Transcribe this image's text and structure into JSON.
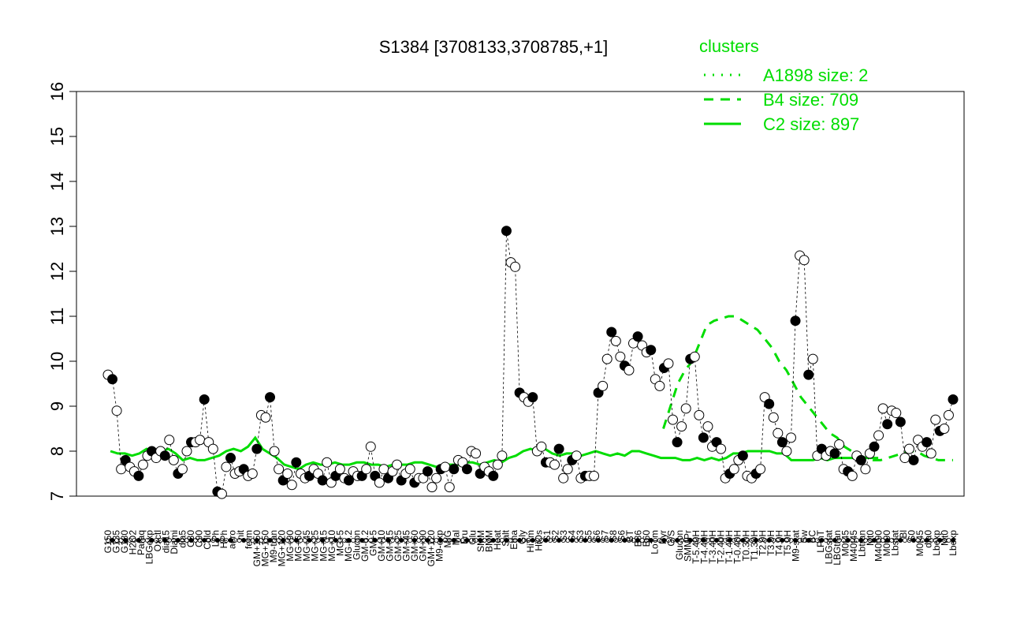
{
  "chart_data": {
    "type": "line",
    "title": "S1384 [3708133,3708785,+1]",
    "ylim": [
      7,
      16
    ],
    "y_ticks": [
      "7",
      "8",
      "9",
      "10",
      "11",
      "12",
      "13",
      "14",
      "15",
      "16"
    ],
    "legend": {
      "title": "clusters",
      "placement": "top-right",
      "entries": [
        {
          "label": "A1898 size: 2",
          "style": "dotted"
        },
        {
          "label": "B4 size: 709",
          "style": "dashed"
        },
        {
          "label": "C2 size: 897",
          "style": "solid"
        }
      ]
    },
    "x_tick_labels": [
      "G150",
      "G135",
      "G180",
      "H2O2",
      "Paraq",
      "LBGexp",
      "Oxctl",
      "dia15",
      "Diami",
      "dia5",
      "C30",
      "C90",
      "Cold",
      "LPh",
      "HPh",
      "aero",
      "nit",
      "ferm",
      "GM+150",
      "MG+150",
      "M9-tran",
      "MG+120",
      "MG+90",
      "MG+60",
      "MG+45",
      "MG+25",
      "MG+15",
      "MG+10",
      "MG+5",
      "MG-0.2",
      "Glucon",
      "GM-0.2",
      "GM+5",
      "GM+10",
      "GM+15",
      "GM+25",
      "GM+45",
      "GM+60",
      "GM+90",
      "GM+120",
      "M9-exp",
      "M/G",
      "Mal",
      "Fru",
      "Glu",
      "SMM",
      "BMM",
      "Heat",
      "Salt",
      "Etha",
      "Gly",
      "HiTm",
      "HiOs",
      "S1",
      "S2",
      "S3",
      "S4",
      "S3",
      "S5",
      "S6",
      "S7",
      "S8",
      "S6",
      "BT",
      "B36",
      "B60",
      "LoTm",
      "Pyr",
      "G/S",
      "Glucon",
      "SMMPr",
      "T-5.40H",
      "T-4.40H",
      "T-3.40H",
      "T-2.40H",
      "T-1.40H",
      "T-0.40H",
      "T0.30H",
      "T1.30H",
      "T2.0H",
      "T3.0H",
      "T4.0H",
      "T5.0H",
      "M9-stat",
      "Sw",
      "BC",
      "LPhT",
      "LBGstat",
      "LBGtran",
      "M0t45",
      "M40t45",
      "Lbtran",
      "Mt0",
      "M40t90",
      "M0t90",
      "Lbstat",
      "Bl",
      "S0",
      "M0t45",
      "dia0",
      "Lbexp",
      "Mt0",
      "Lbexp"
    ],
    "series": [
      {
        "name": "C2 size: 897",
        "x": [
          1,
          4,
          7,
          10,
          13,
          16,
          19,
          22,
          25,
          28,
          31,
          34,
          37,
          40,
          43,
          46,
          49,
          52,
          55,
          58,
          61,
          64,
          67,
          70,
          73,
          76,
          79,
          82,
          85,
          88,
          91,
          94,
          97,
          100,
          103,
          106,
          109,
          112,
          115,
          118,
          121,
          124,
          127,
          130,
          133,
          136,
          139,
          142,
          145,
          148,
          151,
          154,
          157,
          160,
          163,
          166,
          169,
          172,
          175,
          178,
          181,
          184,
          187,
          190,
          193,
          196,
          199,
          202,
          205,
          208,
          211,
          214,
          217,
          220,
          223,
          226,
          229,
          232,
          235,
          238,
          241,
          244,
          247,
          250,
          253,
          256,
          259,
          262,
          265,
          268,
          271,
          274,
          277,
          280,
          283,
          286,
          289,
          292,
          295,
          298,
          301,
          304,
          307,
          310,
          313,
          316,
          319
        ],
        "y": [
          8.0,
          7.95,
          7.95,
          7.9,
          7.95,
          8.05,
          8.0,
          8.0,
          8.05,
          7.95,
          7.8,
          7.85,
          7.8,
          7.8,
          7.85,
          7.9,
          8.0,
          8.05,
          8.0,
          8.1,
          8.3,
          8.05,
          7.95,
          7.85,
          7.7,
          7.65,
          7.6,
          7.7,
          7.75,
          7.7,
          7.7,
          7.75,
          7.7,
          7.7,
          7.75,
          7.75,
          7.7,
          7.7,
          7.65,
          7.7,
          7.7,
          7.7,
          7.75,
          7.75,
          7.7,
          7.65,
          7.7,
          7.7,
          7.7,
          7.75,
          7.75,
          7.7,
          7.75,
          7.8,
          7.75,
          7.85,
          7.9,
          8.0,
          8.05,
          8.0,
          8.05,
          7.95,
          7.9,
          7.95,
          7.95,
          7.9,
          7.95,
          8.0,
          7.95,
          7.9,
          7.95,
          7.9,
          8.0,
          8.0,
          7.95,
          7.9,
          7.85,
          7.85,
          7.85,
          7.8,
          7.8,
          7.85,
          7.8,
          7.85,
          7.8,
          7.85,
          7.95,
          7.95,
          8.0,
          8.0,
          8.0,
          8.0,
          7.95,
          7.95,
          7.8,
          7.8,
          7.8,
          7.8,
          7.85,
          7.8,
          7.85,
          7.85,
          7.85,
          7.85,
          7.85,
          7.85,
          7.85
        ]
      },
      {
        "name": "B4 size: 709",
        "x": [
          230,
          233,
          236,
          239,
          242,
          245,
          248,
          251,
          254,
          257,
          260,
          263,
          266,
          269,
          272,
          275,
          278,
          281,
          284,
          287,
          290,
          293,
          296,
          299,
          302,
          305,
          308,
          311,
          314,
          317,
          320,
          323,
          326,
          329,
          332,
          335,
          338,
          341,
          344,
          347,
          350
        ],
        "y": [
          8.5,
          9.0,
          9.5,
          9.8,
          10.0,
          10.4,
          10.8,
          10.9,
          10.95,
          11.0,
          11.0,
          10.9,
          10.8,
          10.7,
          10.5,
          10.3,
          10.0,
          9.8,
          9.5,
          9.2,
          9.0,
          8.8,
          8.6,
          8.4,
          8.3,
          8.1,
          8.0,
          7.9,
          7.85,
          7.8,
          7.8,
          7.85,
          7.9,
          7.95,
          8.0,
          8.0,
          7.9,
          7.85,
          7.8,
          7.8,
          7.8
        ]
      },
      {
        "name": "A1898 size: 2",
        "x": [],
        "y": []
      }
    ],
    "points": [
      {
        "x": 0,
        "y": 9.7
      },
      {
        "x": 1,
        "y": 9.6
      },
      {
        "x": 2,
        "y": 8.9
      },
      {
        "x": 3,
        "y": 7.6
      },
      {
        "x": 4,
        "y": 7.8
      },
      {
        "x": 5,
        "y": 7.65
      },
      {
        "x": 6,
        "y": 7.55
      },
      {
        "x": 7,
        "y": 7.45
      },
      {
        "x": 8,
        "y": 7.7
      },
      {
        "x": 9,
        "y": 7.9
      },
      {
        "x": 10,
        "y": 8.0
      },
      {
        "x": 11,
        "y": 7.85
      },
      {
        "x": 12,
        "y": 8.0
      },
      {
        "x": 13,
        "y": 7.9
      },
      {
        "x": 14,
        "y": 8.25
      },
      {
        "x": 15,
        "y": 7.8
      },
      {
        "x": 16,
        "y": 7.5
      },
      {
        "x": 17,
        "y": 7.6
      },
      {
        "x": 18,
        "y": 8.0
      },
      {
        "x": 19,
        "y": 8.2
      },
      {
        "x": 20,
        "y": 8.2
      },
      {
        "x": 21,
        "y": 8.25
      },
      {
        "x": 22,
        "y": 9.15
      },
      {
        "x": 23,
        "y": 8.2
      },
      {
        "x": 24,
        "y": 8.05
      },
      {
        "x": 25,
        "y": 7.1
      },
      {
        "x": 26,
        "y": 7.05
      },
      {
        "x": 27,
        "y": 7.65
      },
      {
        "x": 28,
        "y": 7.85
      },
      {
        "x": 29,
        "y": 7.5
      },
      {
        "x": 30,
        "y": 7.55
      },
      {
        "x": 31,
        "y": 7.6
      },
      {
        "x": 32,
        "y": 7.45
      },
      {
        "x": 33,
        "y": 7.5
      },
      {
        "x": 34,
        "y": 8.05
      },
      {
        "x": 35,
        "y": 8.8
      },
      {
        "x": 36,
        "y": 8.75
      },
      {
        "x": 37,
        "y": 9.2
      },
      {
        "x": 38,
        "y": 8.0
      },
      {
        "x": 39,
        "y": 7.6
      },
      {
        "x": 40,
        "y": 7.35
      },
      {
        "x": 41,
        "y": 7.5
      },
      {
        "x": 42,
        "y": 7.25
      },
      {
        "x": 43,
        "y": 7.75
      },
      {
        "x": 44,
        "y": 7.5
      },
      {
        "x": 45,
        "y": 7.4
      },
      {
        "x": 46,
        "y": 7.45
      },
      {
        "x": 47,
        "y": 7.6
      },
      {
        "x": 48,
        "y": 7.5
      },
      {
        "x": 49,
        "y": 7.35
      },
      {
        "x": 50,
        "y": 7.75
      },
      {
        "x": 51,
        "y": 7.3
      },
      {
        "x": 52,
        "y": 7.45
      },
      {
        "x": 53,
        "y": 7.6
      },
      {
        "x": 54,
        "y": 7.4
      },
      {
        "x": 55,
        "y": 7.35
      },
      {
        "x": 56,
        "y": 7.55
      },
      {
        "x": 57,
        "y": 7.45
      },
      {
        "x": 58,
        "y": 7.45
      },
      {
        "x": 59,
        "y": 7.6
      },
      {
        "x": 60,
        "y": 8.1
      },
      {
        "x": 61,
        "y": 7.45
      },
      {
        "x": 62,
        "y": 7.3
      },
      {
        "x": 63,
        "y": 7.6
      },
      {
        "x": 64,
        "y": 7.4
      },
      {
        "x": 65,
        "y": 7.55
      },
      {
        "x": 66,
        "y": 7.7
      },
      {
        "x": 67,
        "y": 7.35
      },
      {
        "x": 68,
        "y": 7.5
      },
      {
        "x": 69,
        "y": 7.6
      },
      {
        "x": 70,
        "y": 7.3
      },
      {
        "x": 71,
        "y": 7.4
      },
      {
        "x": 72,
        "y": 7.4
      },
      {
        "x": 73,
        "y": 7.55
      },
      {
        "x": 74,
        "y": 7.2
      },
      {
        "x": 75,
        "y": 7.4
      },
      {
        "x": 76,
        "y": 7.6
      },
      {
        "x": 77,
        "y": 7.65
      },
      {
        "x": 78,
        "y": 7.2
      },
      {
        "x": 79,
        "y": 7.6
      },
      {
        "x": 80,
        "y": 7.8
      },
      {
        "x": 81,
        "y": 7.75
      },
      {
        "x": 82,
        "y": 7.6
      },
      {
        "x": 83,
        "y": 8.0
      },
      {
        "x": 84,
        "y": 7.95
      },
      {
        "x": 85,
        "y": 7.5
      },
      {
        "x": 86,
        "y": 7.65
      },
      {
        "x": 87,
        "y": 7.55
      },
      {
        "x": 88,
        "y": 7.45
      },
      {
        "x": 89,
        "y": 7.7
      },
      {
        "x": 90,
        "y": 7.9
      },
      {
        "x": 91,
        "y": 12.9
      },
      {
        "x": 92,
        "y": 12.2
      },
      {
        "x": 93,
        "y": 12.1
      },
      {
        "x": 94,
        "y": 9.3
      },
      {
        "x": 95,
        "y": 9.2
      },
      {
        "x": 96,
        "y": 9.1
      },
      {
        "x": 97,
        "y": 9.2
      },
      {
        "x": 98,
        "y": 8.0
      },
      {
        "x": 99,
        "y": 8.1
      },
      {
        "x": 100,
        "y": 7.75
      },
      {
        "x": 101,
        "y": 7.75
      },
      {
        "x": 102,
        "y": 7.7
      },
      {
        "x": 103,
        "y": 8.05
      },
      {
        "x": 104,
        "y": 7.4
      },
      {
        "x": 105,
        "y": 7.6
      },
      {
        "x": 106,
        "y": 7.8
      },
      {
        "x": 107,
        "y": 7.9
      },
      {
        "x": 108,
        "y": 7.4
      },
      {
        "x": 109,
        "y": 7.45
      },
      {
        "x": 110,
        "y": 7.45
      },
      {
        "x": 111,
        "y": 7.45
      },
      {
        "x": 112,
        "y": 9.3
      },
      {
        "x": 113,
        "y": 9.45
      },
      {
        "x": 114,
        "y": 10.05
      },
      {
        "x": 115,
        "y": 10.65
      },
      {
        "x": 116,
        "y": 10.45
      },
      {
        "x": 117,
        "y": 10.1
      },
      {
        "x": 118,
        "y": 9.9
      },
      {
        "x": 119,
        "y": 9.8
      },
      {
        "x": 120,
        "y": 10.4
      },
      {
        "x": 121,
        "y": 10.55
      },
      {
        "x": 122,
        "y": 10.35
      },
      {
        "x": 123,
        "y": 10.2
      },
      {
        "x": 124,
        "y": 10.25
      },
      {
        "x": 125,
        "y": 9.6
      },
      {
        "x": 126,
        "y": 9.45
      },
      {
        "x": 127,
        "y": 9.85
      },
      {
        "x": 128,
        "y": 9.95
      },
      {
        "x": 129,
        "y": 8.7
      },
      {
        "x": 130,
        "y": 8.2
      },
      {
        "x": 131,
        "y": 8.55
      },
      {
        "x": 132,
        "y": 8.95
      },
      {
        "x": 133,
        "y": 10.05
      },
      {
        "x": 134,
        "y": 10.1
      },
      {
        "x": 135,
        "y": 8.8
      },
      {
        "x": 136,
        "y": 8.3
      },
      {
        "x": 137,
        "y": 8.55
      },
      {
        "x": 138,
        "y": 8.1
      },
      {
        "x": 139,
        "y": 8.2
      },
      {
        "x": 140,
        "y": 8.05
      },
      {
        "x": 141,
        "y": 7.4
      },
      {
        "x": 142,
        "y": 7.5
      },
      {
        "x": 143,
        "y": 7.6
      },
      {
        "x": 144,
        "y": 7.8
      },
      {
        "x": 145,
        "y": 7.9
      },
      {
        "x": 146,
        "y": 7.45
      },
      {
        "x": 147,
        "y": 7.4
      },
      {
        "x": 148,
        "y": 7.5
      },
      {
        "x": 149,
        "y": 7.6
      },
      {
        "x": 150,
        "y": 9.2
      },
      {
        "x": 151,
        "y": 9.05
      },
      {
        "x": 152,
        "y": 8.75
      },
      {
        "x": 153,
        "y": 8.4
      },
      {
        "x": 154,
        "y": 8.2
      },
      {
        "x": 155,
        "y": 8.0
      },
      {
        "x": 156,
        "y": 8.3
      },
      {
        "x": 157,
        "y": 10.9
      },
      {
        "x": 158,
        "y": 12.35
      },
      {
        "x": 159,
        "y": 12.25
      },
      {
        "x": 160,
        "y": 9.7
      },
      {
        "x": 161,
        "y": 10.05
      },
      {
        "x": 162,
        "y": 7.9
      },
      {
        "x": 163,
        "y": 8.05
      },
      {
        "x": 164,
        "y": 7.9
      },
      {
        "x": 165,
        "y": 8.0
      },
      {
        "x": 166,
        "y": 7.95
      },
      {
        "x": 167,
        "y": 8.15
      },
      {
        "x": 168,
        "y": 7.6
      },
      {
        "x": 169,
        "y": 7.55
      },
      {
        "x": 170,
        "y": 7.45
      },
      {
        "x": 171,
        "y": 7.9
      },
      {
        "x": 172,
        "y": 7.8
      },
      {
        "x": 173,
        "y": 7.6
      },
      {
        "x": 174,
        "y": 7.95
      },
      {
        "x": 175,
        "y": 8.1
      },
      {
        "x": 176,
        "y": 8.35
      },
      {
        "x": 177,
        "y": 8.95
      },
      {
        "x": 178,
        "y": 8.6
      },
      {
        "x": 179,
        "y": 8.9
      },
      {
        "x": 180,
        "y": 8.85
      },
      {
        "x": 181,
        "y": 8.65
      },
      {
        "x": 182,
        "y": 7.85
      },
      {
        "x": 183,
        "y": 8.05
      },
      {
        "x": 184,
        "y": 7.8
      },
      {
        "x": 185,
        "y": 8.25
      },
      {
        "x": 186,
        "y": 8.1
      },
      {
        "x": 187,
        "y": 8.2
      },
      {
        "x": 188,
        "y": 7.95
      },
      {
        "x": 189,
        "y": 8.7
      },
      {
        "x": 190,
        "y": 8.45
      },
      {
        "x": 191,
        "y": 8.5
      },
      {
        "x": 192,
        "y": 8.8
      },
      {
        "x": 193,
        "y": 9.15
      }
    ]
  }
}
